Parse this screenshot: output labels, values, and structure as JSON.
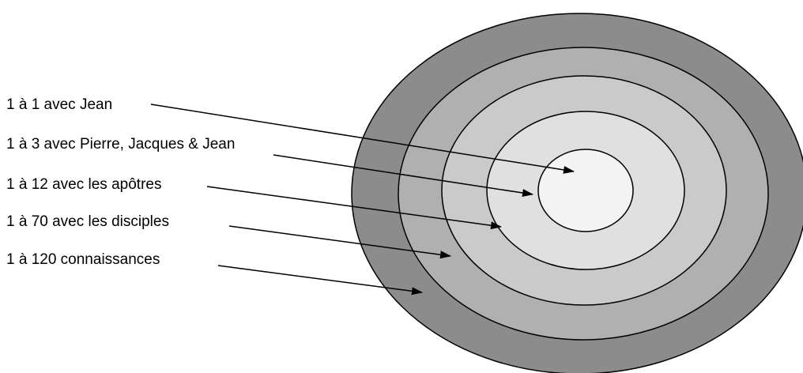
{
  "diagram": {
    "rings": [
      {
        "label": "1 à 120 connaissances",
        "fill": "#8c8c8c"
      },
      {
        "label": "1 à 70 avec les disciples",
        "fill": "#b0b0b0"
      },
      {
        "label": "1 à 12 avec les apôtres",
        "fill": "#cacaca"
      },
      {
        "label": "1 à 3 avec Pierre, Jacques & Jean",
        "fill": "#e0e0e0"
      },
      {
        "label": "1 à 1 avec Jean",
        "fill": "#f3f3f3"
      }
    ],
    "labels": [
      "1 à 1 avec Jean",
      "1 à 3 avec Pierre, Jacques & Jean",
      "1 à 12 avec les apôtres",
      "1 à 70 avec les disciples",
      "1 à 120 connaissances"
    ],
    "stroke_color": "#000000"
  }
}
